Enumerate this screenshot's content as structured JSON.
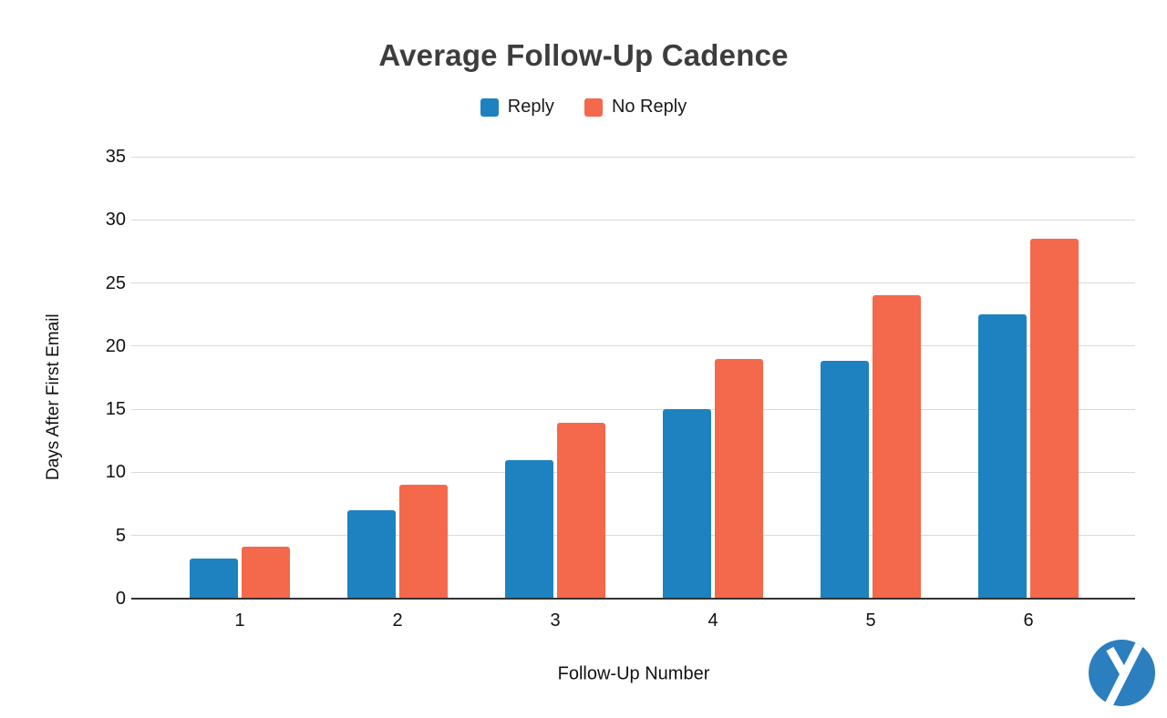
{
  "title": "Average Follow-Up Cadence",
  "legend": {
    "items": [
      {
        "label": "Reply",
        "color": "#1e82c0"
      },
      {
        "label": "No Reply",
        "color": "#f4684b"
      }
    ]
  },
  "chart_data": {
    "type": "bar",
    "title": "Average Follow-Up Cadence",
    "categories": [
      "1",
      "2",
      "3",
      "4",
      "5",
      "6"
    ],
    "series": [
      {
        "name": "Reply",
        "color": "#1e82c0",
        "values": [
          3.2,
          7,
          11,
          15,
          18.8,
          22.5
        ]
      },
      {
        "name": "No Reply",
        "color": "#f4684b",
        "values": [
          4.1,
          9,
          13.9,
          19,
          24,
          28.5
        ]
      }
    ],
    "xlabel": "Follow-Up Number",
    "ylabel": "Days After First Email",
    "ylim": [
      0,
      35
    ],
    "yticks": [
      0,
      5,
      10,
      15,
      20,
      25,
      30,
      35
    ],
    "grid": true,
    "legend_position": "top"
  },
  "colors": {
    "grid": "#d9d9d9",
    "axis": "#333333",
    "title": "#3d3d3d",
    "text": "#111111"
  },
  "logo": {
    "name": "y-logo",
    "color": "#2b7fbe"
  }
}
